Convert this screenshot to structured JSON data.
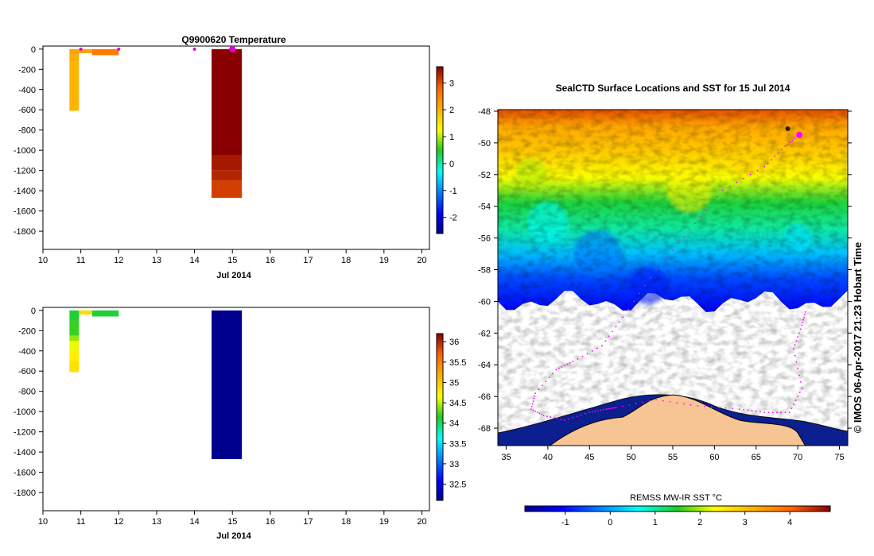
{
  "chart_data": [
    {
      "id": "temperature",
      "type": "heatmap",
      "title": "Q9900620  Temperature",
      "xlabel": "Jul 2014",
      "ylabel": "",
      "x_ticks": [
        10,
        11,
        12,
        13,
        14,
        15,
        16,
        17,
        18,
        19,
        20
      ],
      "y_ticks": [
        0,
        -200,
        -400,
        -600,
        -800,
        -1000,
        -1200,
        -1400,
        -1600,
        -1800
      ],
      "xlim": [
        10,
        20.2
      ],
      "ylim": [
        -1980,
        30
      ],
      "grid": false,
      "colorbar": {
        "ticks": [
          3,
          2,
          1,
          0,
          -1,
          -2
        ],
        "range": [
          -2.6,
          3.6
        ]
      },
      "profiles": [
        {
          "x0": 10.7,
          "x1": 10.95,
          "cells": [
            {
              "top": 0,
              "bottom": -50,
              "value": 2.2
            },
            {
              "top": -50,
              "bottom": -120,
              "value": 2.1
            },
            {
              "top": -120,
              "bottom": -610,
              "value": 2.0
            }
          ]
        },
        {
          "x0": 10.95,
          "x1": 11.3,
          "cells": [
            {
              "top": 0,
              "bottom": -40,
              "value": 2.2
            }
          ]
        },
        {
          "x0": 11.3,
          "x1": 12.0,
          "cells": [
            {
              "top": 0,
              "bottom": -60,
              "value": 2.6
            }
          ]
        },
        {
          "x0": 14.45,
          "x1": 15.25,
          "cells": [
            {
              "top": 0,
              "bottom": -1050,
              "value": 3.6
            },
            {
              "top": -1050,
              "bottom": -1200,
              "value": 3.4
            },
            {
              "top": -1200,
              "bottom": -1300,
              "value": 3.3
            },
            {
              "top": -1300,
              "bottom": -1470,
              "value": 3.1
            }
          ]
        }
      ],
      "surface_markers": [
        11.0,
        12.0,
        14.0,
        15.0
      ]
    },
    {
      "id": "salinity",
      "type": "heatmap",
      "title": "",
      "xlabel": "Jul 2014",
      "ylabel": "",
      "x_ticks": [
        10,
        11,
        12,
        13,
        14,
        15,
        16,
        17,
        18,
        19,
        20
      ],
      "y_ticks": [
        0,
        -200,
        -400,
        -600,
        -800,
        -1000,
        -1200,
        -1400,
        -1600,
        -1800
      ],
      "xlim": [
        10,
        20.2
      ],
      "ylim": [
        -1980,
        30
      ],
      "grid": false,
      "colorbar": {
        "ticks": [
          36,
          35.5,
          35,
          34.5,
          34,
          33.5,
          33,
          32.5
        ],
        "range": [
          32.1,
          36.2
        ]
      },
      "profiles": [
        {
          "x0": 10.7,
          "x1": 10.95,
          "cells": [
            {
              "top": 0,
              "bottom": -100,
              "value": 34.1
            },
            {
              "top": -100,
              "bottom": -250,
              "value": 34.2
            },
            {
              "top": -250,
              "bottom": -300,
              "value": 34.4
            },
            {
              "top": -300,
              "bottom": -400,
              "value": 34.6
            },
            {
              "top": -400,
              "bottom": -500,
              "value": 34.75
            },
            {
              "top": -500,
              "bottom": -610,
              "value": 34.85
            }
          ]
        },
        {
          "x0": 10.95,
          "x1": 11.3,
          "cells": [
            {
              "top": 0,
              "bottom": -40,
              "value": 34.9
            }
          ]
        },
        {
          "x0": 11.3,
          "x1": 12.0,
          "cells": [
            {
              "top": 0,
              "bottom": -60,
              "value": 34.1
            }
          ]
        },
        {
          "x0": 14.45,
          "x1": 15.25,
          "cells": [
            {
              "top": 0,
              "bottom": -1470,
              "value": 32.1
            }
          ]
        }
      ]
    },
    {
      "id": "sst-map",
      "type": "heatmap",
      "title": "SealCTD Surface Locations and SST for 15 Jul 2014",
      "x_ticks": [
        35,
        40,
        45,
        50,
        55,
        60,
        65,
        70,
        75
      ],
      "y_ticks": [
        -48,
        -50,
        -52,
        -54,
        -56,
        -58,
        -60,
        -62,
        -64,
        -66,
        -68
      ],
      "xlim": [
        34,
        76
      ],
      "ylim": [
        -69.1,
        -47.9
      ],
      "colorbar": {
        "label": "REMSS MW-IR SST °C",
        "ticks": [
          -1,
          0,
          1,
          2,
          3,
          4
        ],
        "range": [
          -1.9,
          4.9
        ]
      },
      "sst_latitude_profile": [
        {
          "lat": -48.0,
          "sst": 4.2
        },
        {
          "lat": -49.0,
          "sst": 3.3
        },
        {
          "lat": -50.5,
          "sst": 2.9
        },
        {
          "lat": -52.0,
          "sst": 2.3
        },
        {
          "lat": -53.5,
          "sst": 1.4
        },
        {
          "lat": -55.0,
          "sst": 1.0
        },
        {
          "lat": -56.5,
          "sst": 0.2
        },
        {
          "lat": -58.0,
          "sst": -0.6
        },
        {
          "lat": -60.0,
          "sst": -1.1
        }
      ],
      "seal_track_lonlat": [
        [
          70.2,
          -49.5
        ],
        [
          68.5,
          -50.2
        ],
        [
          66.0,
          -51.5
        ],
        [
          61.0,
          -53.0
        ],
        [
          57.0,
          -55.5
        ],
        [
          53.0,
          -58.0
        ],
        [
          49.0,
          -61.0
        ],
        [
          46.5,
          -62.8
        ],
        [
          43.0,
          -63.8
        ],
        [
          41.0,
          -64.3
        ],
        [
          38.5,
          -65.8
        ],
        [
          38.0,
          -66.8
        ],
        [
          39.5,
          -67.2
        ],
        [
          42.0,
          -67.5
        ],
        [
          45.0,
          -67.0
        ],
        [
          47.0,
          -66.8
        ],
        [
          48.2,
          -66.7
        ],
        [
          53.0,
          -66.2
        ],
        [
          58.0,
          -66.6
        ],
        [
          63.0,
          -66.8
        ],
        [
          66.0,
          -67.0
        ],
        [
          69.0,
          -67.0
        ],
        [
          70.5,
          -65.5
        ],
        [
          69.5,
          -63.0
        ],
        [
          70.5,
          -61.5
        ],
        [
          71.0,
          -60.5
        ]
      ]
    }
  ],
  "stamp": "© IMOS 06-Apr-2017 21:23 Hobart Time"
}
